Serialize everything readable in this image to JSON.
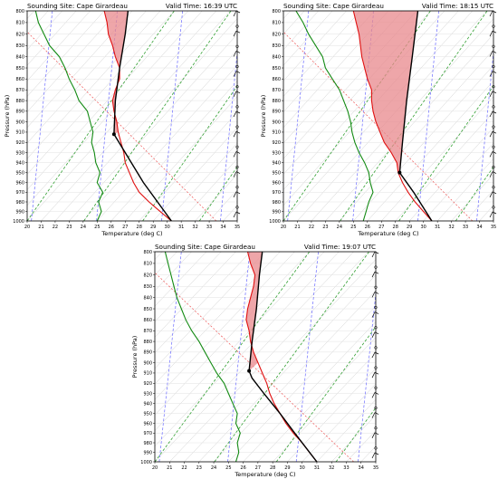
{
  "chart_data": [
    {
      "type": "line",
      "title_left": "Sounding Site: Cape Girardeau",
      "title_right": "Valid Time: 16:39 UTC",
      "xlabel": "Temperature (deg C)",
      "ylabel": "Pressure (hPa)",
      "xlim": [
        20,
        35
      ],
      "ylim": [
        1000,
        800
      ],
      "x_ticks": [
        "20",
        "21",
        "22",
        "23",
        "24",
        "25",
        "26",
        "27",
        "28",
        "29",
        "30",
        "31",
        "32",
        "33",
        "34",
        "35"
      ],
      "y_ticks": [
        "800",
        "810",
        "820",
        "830",
        "840",
        "850",
        "860",
        "870",
        "880",
        "890",
        "900",
        "910",
        "920",
        "930",
        "940",
        "950",
        "960",
        "970",
        "980",
        "990",
        "1000"
      ],
      "temperature": [
        [
          30.3,
          1000
        ],
        [
          29.5,
          990
        ],
        [
          28.7,
          980
        ],
        [
          28.0,
          970
        ],
        [
          27.6,
          960
        ],
        [
          27.3,
          950
        ],
        [
          27.0,
          940
        ],
        [
          26.9,
          930
        ],
        [
          26.7,
          920
        ],
        [
          26.5,
          910
        ],
        [
          26.4,
          900
        ],
        [
          26.2,
          890
        ],
        [
          26.1,
          880
        ],
        [
          26.3,
          870
        ],
        [
          26.6,
          860
        ],
        [
          26.6,
          850
        ],
        [
          26.3,
          840
        ],
        [
          26.1,
          830
        ],
        [
          25.8,
          820
        ],
        [
          25.7,
          810
        ],
        [
          25.5,
          800
        ]
      ],
      "dewpoint": [
        [
          25.0,
          1000
        ],
        [
          25.3,
          990
        ],
        [
          25.1,
          980
        ],
        [
          25.4,
          970
        ],
        [
          25.0,
          960
        ],
        [
          25.2,
          950
        ],
        [
          24.9,
          940
        ],
        [
          24.8,
          930
        ],
        [
          24.6,
          920
        ],
        [
          24.7,
          910
        ],
        [
          24.5,
          900
        ],
        [
          24.3,
          890
        ],
        [
          23.7,
          880
        ],
        [
          23.4,
          870
        ],
        [
          23.0,
          860
        ],
        [
          22.7,
          850
        ],
        [
          22.3,
          840
        ],
        [
          21.6,
          830
        ],
        [
          21.2,
          820
        ],
        [
          20.8,
          810
        ],
        [
          20.6,
          800
        ]
      ],
      "parcel": [
        [
          30.3,
          1000
        ],
        [
          28.3,
          960
        ],
        [
          26.2,
          912
        ],
        [
          26.3,
          880
        ],
        [
          26.6,
          850
        ],
        [
          27.0,
          820
        ],
        [
          27.2,
          800
        ]
      ],
      "lcl": [
        26.2,
        912
      ],
      "cape_fill": "#e8888c",
      "barbs": "left"
    },
    {
      "type": "line",
      "title_left": "Sounding Site: Cape Girardeau",
      "title_right": "Valid Time: 18:15 UTC",
      "xlabel": "Temperature (deg C)",
      "ylabel": "Pressure (hPa)",
      "xlim": [
        20,
        35
      ],
      "ylim": [
        1000,
        800
      ],
      "x_ticks": [
        "20",
        "21",
        "22",
        "23",
        "24",
        "25",
        "26",
        "27",
        "28",
        "29",
        "30",
        "31",
        "32",
        "33",
        "34",
        "35"
      ],
      "y_ticks": [
        "800",
        "810",
        "820",
        "830",
        "840",
        "850",
        "860",
        "870",
        "880",
        "890",
        "900",
        "910",
        "920",
        "930",
        "940",
        "950",
        "960",
        "970",
        "980",
        "990",
        "1000"
      ],
      "temperature": [
        [
          30.6,
          1000
        ],
        [
          30.0,
          990
        ],
        [
          29.4,
          980
        ],
        [
          28.9,
          970
        ],
        [
          28.5,
          960
        ],
        [
          28.2,
          950
        ],
        [
          28.1,
          940
        ],
        [
          27.7,
          930
        ],
        [
          27.2,
          920
        ],
        [
          26.9,
          910
        ],
        [
          26.6,
          900
        ],
        [
          26.4,
          890
        ],
        [
          26.3,
          880
        ],
        [
          26.3,
          870
        ],
        [
          26.0,
          860
        ],
        [
          25.8,
          850
        ],
        [
          25.6,
          840
        ],
        [
          25.5,
          830
        ],
        [
          25.4,
          820
        ],
        [
          25.2,
          810
        ],
        [
          25.0,
          800
        ]
      ],
      "dewpoint": [
        [
          25.7,
          1000
        ],
        [
          25.9,
          990
        ],
        [
          26.1,
          980
        ],
        [
          26.4,
          970
        ],
        [
          26.2,
          960
        ],
        [
          26.1,
          950
        ],
        [
          25.8,
          940
        ],
        [
          25.4,
          930
        ],
        [
          25.1,
          920
        ],
        [
          24.9,
          910
        ],
        [
          24.8,
          900
        ],
        [
          24.6,
          890
        ],
        [
          24.3,
          880
        ],
        [
          24.0,
          870
        ],
        [
          23.5,
          860
        ],
        [
          23.0,
          850
        ],
        [
          22.8,
          840
        ],
        [
          22.3,
          830
        ],
        [
          21.8,
          820
        ],
        [
          21.4,
          810
        ],
        [
          20.9,
          800
        ]
      ],
      "parcel": [
        [
          30.6,
          1000
        ],
        [
          29.3,
          970
        ],
        [
          28.3,
          950
        ],
        [
          28.5,
          920
        ],
        [
          28.8,
          880
        ],
        [
          29.2,
          840
        ],
        [
          29.6,
          800
        ]
      ],
      "lcl": [
        28.3,
        950
      ],
      "cape_fill": "#e8888c",
      "barbs": "right"
    },
    {
      "type": "line",
      "title_left": "Sounding Site: Cape Girardeau",
      "title_right": "Valid Time: 19:07 UTC",
      "xlabel": "Temperature (deg C)",
      "ylabel": "Pressure (hPa)",
      "xlim": [
        20,
        35
      ],
      "ylim": [
        1000,
        800
      ],
      "x_ticks": [
        "20",
        "21",
        "22",
        "23",
        "24",
        "25",
        "26",
        "27",
        "28",
        "29",
        "30",
        "31",
        "32",
        "33",
        "34",
        "35"
      ],
      "y_ticks": [
        "800",
        "810",
        "820",
        "830",
        "840",
        "850",
        "860",
        "870",
        "880",
        "890",
        "900",
        "910",
        "920",
        "930",
        "940",
        "950",
        "960",
        "970",
        "980",
        "990",
        "1000"
      ],
      "temperature": [
        [
          31.0,
          1000
        ],
        [
          30.5,
          990
        ],
        [
          30.0,
          980
        ],
        [
          29.4,
          970
        ],
        [
          28.9,
          960
        ],
        [
          28.5,
          950
        ],
        [
          28.1,
          940
        ],
        [
          27.8,
          930
        ],
        [
          27.6,
          920
        ],
        [
          27.3,
          910
        ],
        [
          27.0,
          900
        ],
        [
          26.7,
          890
        ],
        [
          26.5,
          880
        ],
        [
          26.4,
          870
        ],
        [
          26.2,
          860
        ],
        [
          26.3,
          850
        ],
        [
          26.5,
          840
        ],
        [
          26.7,
          830
        ],
        [
          26.8,
          820
        ],
        [
          26.5,
          810
        ],
        [
          26.3,
          800
        ]
      ],
      "dewpoint": [
        [
          25.5,
          1000
        ],
        [
          25.7,
          990
        ],
        [
          25.6,
          980
        ],
        [
          25.8,
          970
        ],
        [
          25.5,
          960
        ],
        [
          25.6,
          950
        ],
        [
          25.3,
          940
        ],
        [
          25.0,
          930
        ],
        [
          24.7,
          920
        ],
        [
          24.2,
          910
        ],
        [
          23.8,
          900
        ],
        [
          23.4,
          890
        ],
        [
          23.0,
          880
        ],
        [
          22.5,
          870
        ],
        [
          22.1,
          860
        ],
        [
          21.8,
          850
        ],
        [
          21.5,
          840
        ],
        [
          21.3,
          830
        ],
        [
          21.1,
          820
        ],
        [
          20.9,
          810
        ],
        [
          20.7,
          800
        ]
      ],
      "parcel": [
        [
          31.0,
          1000
        ],
        [
          29.5,
          970
        ],
        [
          28.5,
          950
        ],
        [
          27.4,
          930
        ],
        [
          26.6,
          915
        ],
        [
          26.4,
          908
        ],
        [
          26.6,
          880
        ],
        [
          26.9,
          850
        ],
        [
          27.1,
          820
        ],
        [
          27.3,
          800
        ]
      ],
      "lcl": [
        26.4,
        908
      ],
      "cape_fill": "#e8888c",
      "barbs": "right"
    }
  ]
}
